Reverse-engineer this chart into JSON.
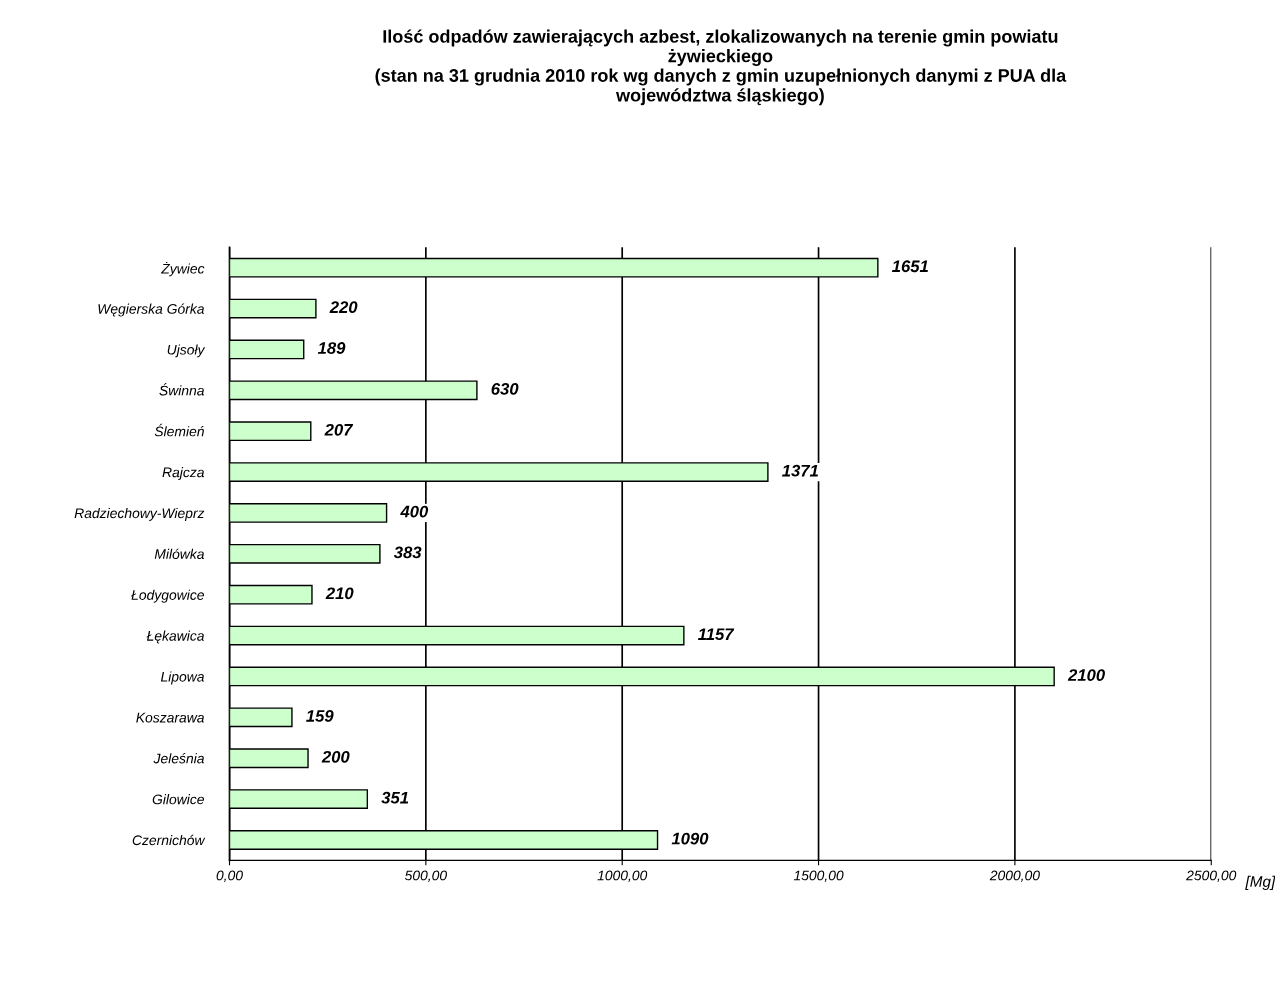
{
  "chart_data": {
    "type": "bar",
    "orientation": "horizontal",
    "title": "Ilość odpadów zawierających azbest, zlokalizowanych na terenie gmin powiatu\nżywieckiego\n(stan na 31 grudnia 2010 rok wg danych z gmin uzupełnionych danymi z PUA dla\nwojewództwa śląskiego)",
    "xlabel": "[Mg]",
    "categories": [
      "Żywiec",
      "Węgierska Górka",
      "Ujsoły",
      "Świnna",
      "Ślemień",
      "Rajcza",
      "Radziechowy-Wieprz",
      "Milówka",
      "Łodygowice",
      "Łękawica",
      "Lipowa",
      "Koszarawa",
      "Jeleśnia",
      "Gilowice",
      "Czernichów"
    ],
    "values": [
      1651,
      220,
      189,
      630,
      207,
      1371,
      400,
      383,
      210,
      1157,
      2100,
      159,
      200,
      351,
      1090
    ],
    "color": "#ccffcc",
    "xlim": [
      0,
      2500
    ],
    "xticks": [
      {
        "value": 0,
        "label": "0,00"
      },
      {
        "value": 500,
        "label": "500,00"
      },
      {
        "value": 1000,
        "label": "1000,00"
      },
      {
        "value": 1500,
        "label": "1500,00"
      },
      {
        "value": 2000,
        "label": "2000,00"
      },
      {
        "value": 2500,
        "label": "2500,00"
      }
    ],
    "grid": "x",
    "data_labels": true
  }
}
